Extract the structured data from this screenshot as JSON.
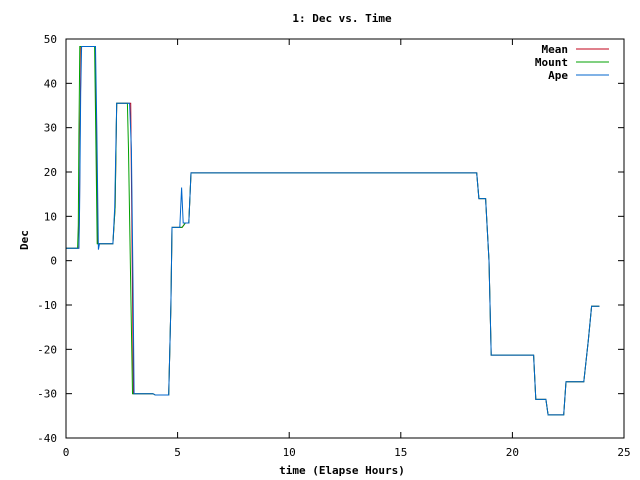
{
  "chart_data": {
    "type": "line",
    "title": "1: Dec vs. Time",
    "xlabel": "time (Elapse Hours)",
    "ylabel": "Dec",
    "xlim": [
      0,
      25
    ],
    "ylim": [
      -40,
      50
    ],
    "xticks": [
      0,
      5,
      10,
      15,
      20,
      25
    ],
    "yticks": [
      -40,
      -30,
      -20,
      -10,
      0,
      10,
      20,
      30,
      40,
      50
    ],
    "grid": false,
    "legend_position": "top-right",
    "series": [
      {
        "name": "Mean",
        "color": "#c0001a",
        "points": [
          [
            0,
            2.8
          ],
          [
            0.57,
            2.8
          ],
          [
            0.6,
            10
          ],
          [
            0.63,
            30
          ],
          [
            0.67,
            48.3
          ],
          [
            1.3,
            48.3
          ],
          [
            1.35,
            30
          ],
          [
            1.42,
            3.8
          ],
          [
            2.1,
            3.8
          ],
          [
            2.2,
            12
          ],
          [
            2.27,
            35.5
          ],
          [
            2.9,
            35.5
          ],
          [
            2.95,
            10
          ],
          [
            3.0,
            -20
          ],
          [
            3.02,
            -30
          ],
          [
            3.9,
            -30
          ],
          [
            4.0,
            -30.3
          ],
          [
            4.6,
            -30.3
          ],
          [
            4.7,
            -10
          ],
          [
            4.75,
            7.5
          ],
          [
            5.2,
            7.5
          ],
          [
            5.35,
            8.5
          ],
          [
            5.5,
            8.5
          ],
          [
            5.6,
            19.8
          ],
          [
            18.4,
            19.8
          ],
          [
            18.5,
            14
          ],
          [
            18.8,
            14
          ],
          [
            18.95,
            0
          ],
          [
            19.05,
            -21.3
          ],
          [
            20.95,
            -21.3
          ],
          [
            21.05,
            -31.3
          ],
          [
            21.5,
            -31.3
          ],
          [
            21.6,
            -34.8
          ],
          [
            22.3,
            -34.8
          ],
          [
            22.4,
            -27.3
          ],
          [
            23.2,
            -27.3
          ],
          [
            23.4,
            -18
          ],
          [
            23.55,
            -10.3
          ],
          [
            23.9,
            -10.3
          ]
        ]
      },
      {
        "name": "Mount",
        "color": "#00a000",
        "points": [
          [
            0,
            2.8
          ],
          [
            0.52,
            2.8
          ],
          [
            0.55,
            8
          ],
          [
            0.58,
            28
          ],
          [
            0.62,
            48.3
          ],
          [
            1.28,
            48.3
          ],
          [
            1.33,
            30
          ],
          [
            1.4,
            3.8
          ],
          [
            2.1,
            3.8
          ],
          [
            2.2,
            12
          ],
          [
            2.27,
            35.5
          ],
          [
            2.75,
            35.5
          ],
          [
            2.8,
            25
          ],
          [
            2.88,
            0
          ],
          [
            2.98,
            -30
          ],
          [
            3.9,
            -30
          ],
          [
            4.0,
            -30.3
          ],
          [
            4.6,
            -30.3
          ],
          [
            4.7,
            -10
          ],
          [
            4.75,
            7.5
          ],
          [
            5.2,
            7.5
          ],
          [
            5.35,
            8.5
          ],
          [
            5.5,
            8.5
          ],
          [
            5.6,
            19.8
          ],
          [
            18.4,
            19.8
          ],
          [
            18.5,
            14
          ],
          [
            18.8,
            14
          ],
          [
            18.95,
            0
          ],
          [
            19.05,
            -21.3
          ],
          [
            20.95,
            -21.3
          ],
          [
            21.05,
            -31.3
          ],
          [
            21.5,
            -31.3
          ],
          [
            21.6,
            -34.8
          ],
          [
            22.3,
            -34.8
          ],
          [
            22.4,
            -27.3
          ],
          [
            23.2,
            -27.3
          ],
          [
            23.4,
            -18
          ],
          [
            23.55,
            -10.3
          ],
          [
            23.9,
            -10.3
          ]
        ]
      },
      {
        "name": "Ape",
        "color": "#0066cc",
        "points": [
          [
            0,
            2.8
          ],
          [
            0.58,
            2.8
          ],
          [
            0.61,
            12
          ],
          [
            0.66,
            38
          ],
          [
            0.7,
            48.3
          ],
          [
            1.32,
            48.3
          ],
          [
            1.38,
            30
          ],
          [
            1.45,
            2.5
          ],
          [
            1.5,
            3.8
          ],
          [
            2.1,
            3.8
          ],
          [
            2.18,
            12
          ],
          [
            2.27,
            35.5
          ],
          [
            2.85,
            35.5
          ],
          [
            2.93,
            25
          ],
          [
            3.0,
            -5
          ],
          [
            3.05,
            -30
          ],
          [
            3.9,
            -30
          ],
          [
            4.0,
            -30.3
          ],
          [
            4.6,
            -30.3
          ],
          [
            4.7,
            -10
          ],
          [
            4.75,
            7.5
          ],
          [
            5.1,
            7.5
          ],
          [
            5.18,
            16.5
          ],
          [
            5.25,
            8.5
          ],
          [
            5.5,
            8.5
          ],
          [
            5.6,
            19.8
          ],
          [
            18.4,
            19.8
          ],
          [
            18.5,
            14
          ],
          [
            18.8,
            14
          ],
          [
            18.95,
            0
          ],
          [
            19.05,
            -21.3
          ],
          [
            20.95,
            -21.3
          ],
          [
            21.05,
            -31.3
          ],
          [
            21.5,
            -31.3
          ],
          [
            21.6,
            -34.8
          ],
          [
            22.3,
            -34.8
          ],
          [
            22.4,
            -27.3
          ],
          [
            23.2,
            -27.3
          ],
          [
            23.4,
            -18
          ],
          [
            23.55,
            -10.3
          ],
          [
            23.9,
            -10.3
          ]
        ]
      }
    ]
  }
}
